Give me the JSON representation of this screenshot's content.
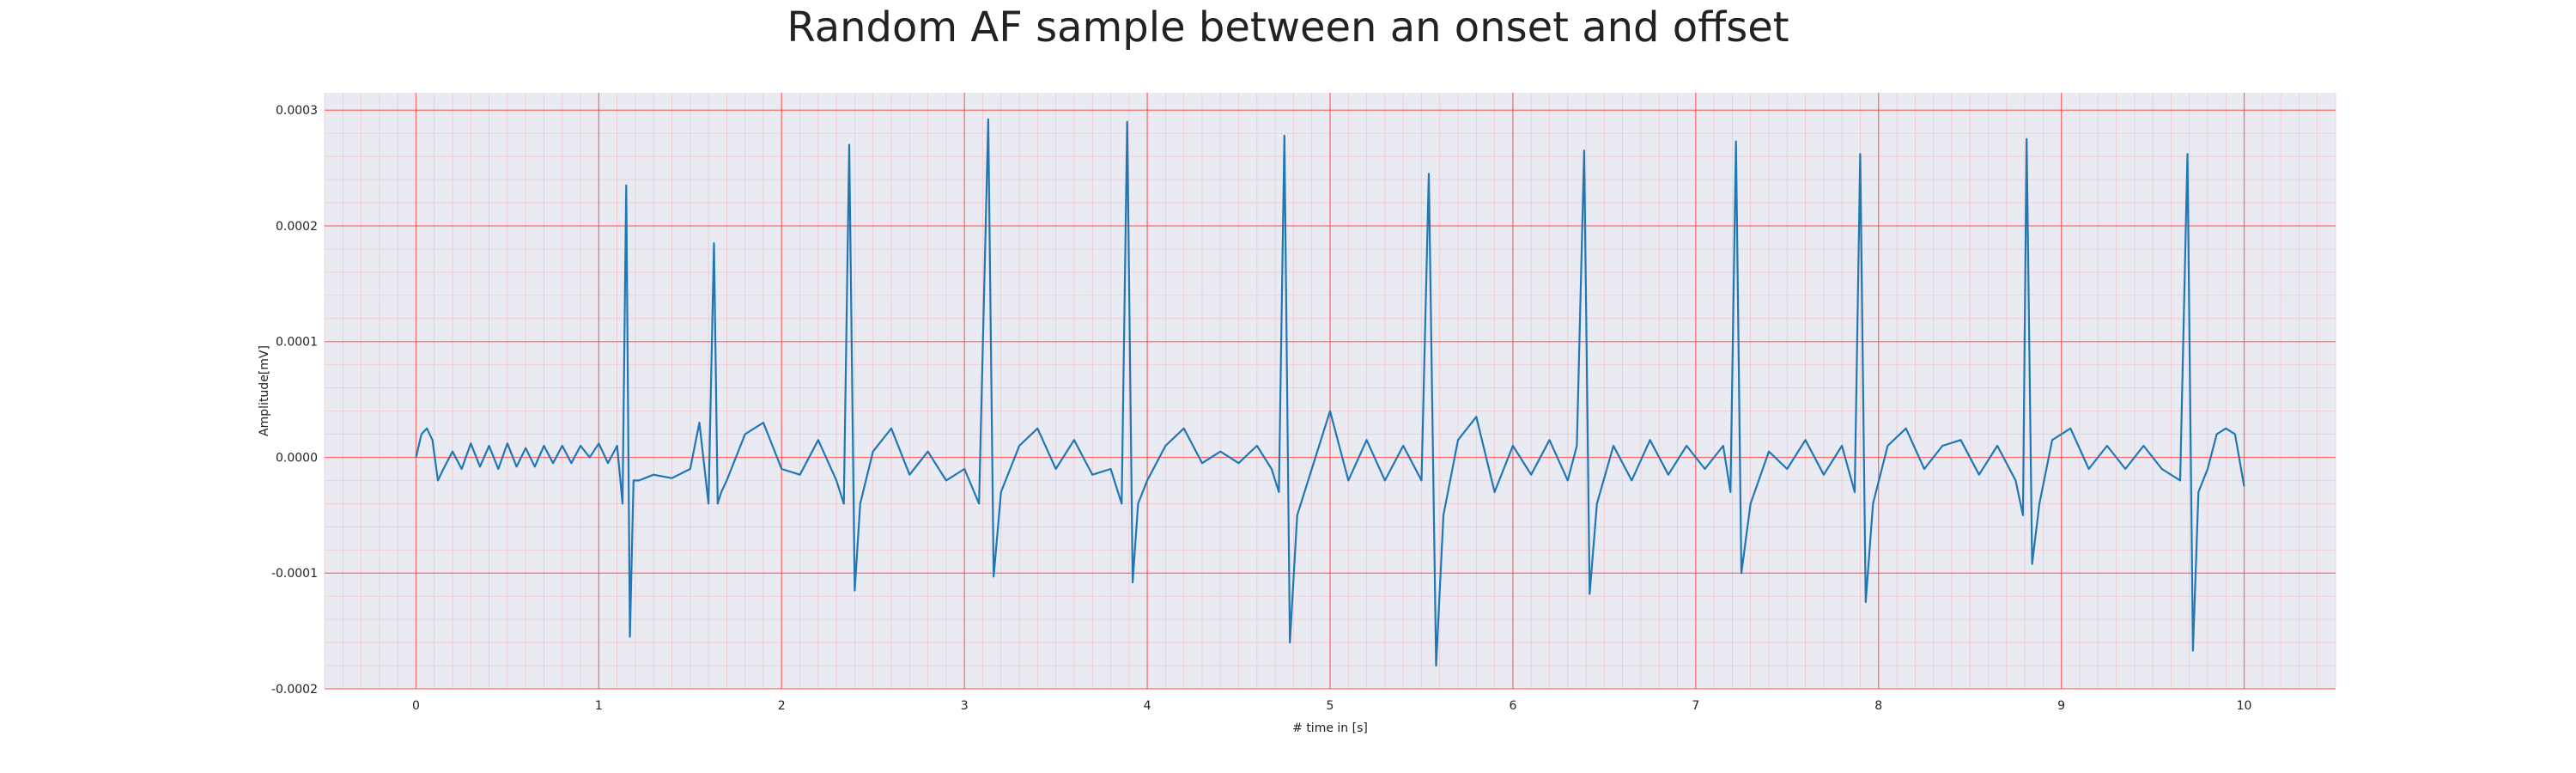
{
  "chart_data": {
    "type": "line",
    "title": "Random AF sample between an onset and offset",
    "xlabel": "# time in [s]",
    "ylabel": "Amplitude[mV]",
    "xlim": [
      -0.5,
      10.5
    ],
    "ylim": [
      -0.0002,
      0.000315
    ],
    "xticks": [
      "0",
      "1",
      "2",
      "3",
      "4",
      "5",
      "6",
      "7",
      "8",
      "9",
      "10"
    ],
    "yticks": [
      "-0.0002",
      "-0.0001",
      "0.0000",
      "0.0001",
      "0.0002",
      "0.0003"
    ],
    "grid": true,
    "minor_grid": true,
    "colors": {
      "line": "#1f77b4",
      "background": "#eaeaf2",
      "major_grid": "#ff4444",
      "minor_grid": "#f4a6a6"
    },
    "series": [
      {
        "x": [
          0.0,
          0.03,
          0.06,
          0.09,
          0.12,
          0.15,
          0.2,
          0.25,
          0.3,
          0.35,
          0.4,
          0.45,
          0.5,
          0.55,
          0.6,
          0.65,
          0.7,
          0.75,
          0.8,
          0.85,
          0.9,
          0.95,
          1.0,
          1.05,
          1.1,
          1.13,
          1.15,
          1.17,
          1.19,
          1.22,
          1.3,
          1.4,
          1.5,
          1.55,
          1.6,
          1.63,
          1.65,
          1.67,
          1.7,
          1.8,
          1.9,
          2.0,
          2.1,
          2.2,
          2.3,
          2.34,
          2.37,
          2.4,
          2.43,
          2.5,
          2.6,
          2.7,
          2.8,
          2.9,
          3.0,
          3.08,
          3.13,
          3.16,
          3.2,
          3.3,
          3.4,
          3.5,
          3.6,
          3.7,
          3.8,
          3.86,
          3.89,
          3.92,
          3.95,
          4.0,
          4.1,
          4.2,
          4.3,
          4.4,
          4.5,
          4.6,
          4.68,
          4.72,
          4.75,
          4.78,
          4.82,
          4.9,
          5.0,
          5.1,
          5.2,
          5.3,
          5.4,
          5.5,
          5.54,
          5.58,
          5.62,
          5.7,
          5.8,
          5.9,
          6.0,
          6.1,
          6.2,
          6.3,
          6.35,
          6.39,
          6.42,
          6.46,
          6.55,
          6.65,
          6.75,
          6.85,
          6.95,
          7.05,
          7.15,
          7.19,
          7.22,
          7.25,
          7.3,
          7.4,
          7.5,
          7.6,
          7.7,
          7.8,
          7.87,
          7.9,
          7.93,
          7.97,
          8.05,
          8.15,
          8.25,
          8.35,
          8.45,
          8.55,
          8.65,
          8.75,
          8.79,
          8.81,
          8.84,
          8.88,
          8.95,
          9.05,
          9.15,
          9.25,
          9.35,
          9.45,
          9.55,
          9.65,
          9.69,
          9.72,
          9.75,
          9.8,
          9.85,
          9.9,
          9.95,
          10.0
        ],
        "y": [
          0.0,
          2e-05,
          2.5e-05,
          1.5e-05,
          -2e-05,
          -1e-05,
          5e-06,
          -1e-05,
          1.2e-05,
          -8e-06,
          1e-05,
          -1e-05,
          1.2e-05,
          -8e-06,
          8e-06,
          -8e-06,
          1e-05,
          -5e-06,
          1e-05,
          -5e-06,
          1e-05,
          0.0,
          1.2e-05,
          -5e-06,
          1e-05,
          -4e-05,
          0.000235,
          -0.000155,
          -2e-05,
          -2e-05,
          -1.5e-05,
          -1.8e-05,
          -1e-05,
          3e-05,
          -4e-05,
          0.000185,
          -4e-05,
          -3e-05,
          -2e-05,
          2e-05,
          3e-05,
          -1e-05,
          -1.5e-05,
          1.5e-05,
          -2e-05,
          -4e-05,
          0.00027,
          -0.000115,
          -4e-05,
          5e-06,
          2.5e-05,
          -1.5e-05,
          5e-06,
          -2e-05,
          -1e-05,
          -4e-05,
          0.000292,
          -0.000103,
          -3e-05,
          1e-05,
          2.5e-05,
          -1e-05,
          1.5e-05,
          -1.5e-05,
          -1e-05,
          -4e-05,
          0.00029,
          -0.000108,
          -4e-05,
          -2e-05,
          1e-05,
          2.5e-05,
          -5e-06,
          5e-06,
          -5e-06,
          1e-05,
          -1e-05,
          -3e-05,
          0.000278,
          -0.00016,
          -5e-05,
          -1e-05,
          4e-05,
          -2e-05,
          1.5e-05,
          -2e-05,
          1e-05,
          -2e-05,
          0.000245,
          -0.00018,
          -5e-05,
          1.5e-05,
          3.5e-05,
          -3e-05,
          1e-05,
          -1.5e-05,
          1.5e-05,
          -2e-05,
          1e-05,
          0.000265,
          -0.000118,
          -4e-05,
          1e-05,
          -2e-05,
          1.5e-05,
          -1.5e-05,
          1e-05,
          -1e-05,
          1e-05,
          -3e-05,
          0.000273,
          -0.0001,
          -4e-05,
          5e-06,
          -1e-05,
          1.5e-05,
          -1.5e-05,
          1e-05,
          -3e-05,
          0.000262,
          -0.000125,
          -4e-05,
          1e-05,
          2.5e-05,
          -1e-05,
          1e-05,
          1.5e-05,
          -1.5e-05,
          1e-05,
          -2e-05,
          -5e-05,
          0.000275,
          -9.2e-05,
          -4e-05,
          1.5e-05,
          2.5e-05,
          -1e-05,
          1e-05,
          -1e-05,
          1e-05,
          -1e-05,
          -2e-05,
          0.000262,
          -0.000167,
          -3e-05,
          -1e-05,
          2e-05,
          2.5e-05,
          2e-05,
          -2.5e-05
        ]
      }
    ]
  }
}
